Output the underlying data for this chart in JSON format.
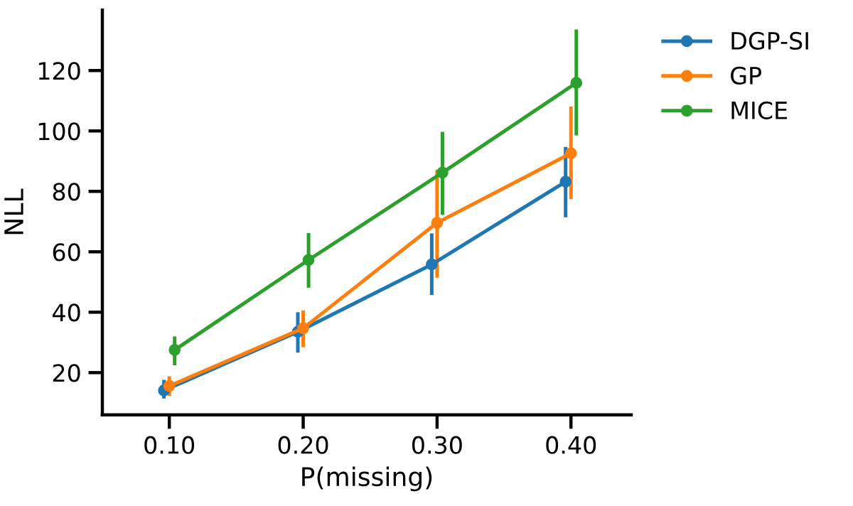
{
  "chart_data": {
    "type": "line",
    "xlabel": "P(missing)",
    "ylabel": "NLL",
    "xlim": [
      0.05,
      0.445
    ],
    "ylim": [
      6,
      140
    ],
    "xticks": [
      {
        "value": 0.1,
        "label": "0.10"
      },
      {
        "value": 0.2,
        "label": "0.20"
      },
      {
        "value": 0.3,
        "label": "0.30"
      },
      {
        "value": 0.4,
        "label": "0.40"
      }
    ],
    "yticks": [
      20,
      40,
      60,
      80,
      100,
      120
    ],
    "marker": "circle",
    "line_style": "solid",
    "grid": false,
    "legend": "top right",
    "series": [
      {
        "name": "DGP-SI",
        "color": "#1f77b4",
        "x": [
          0.096,
          0.196,
          0.296,
          0.396
        ],
        "values": [
          14.1,
          33.5,
          55.8,
          83.2
        ],
        "errors": [
          [
            12,
            17
          ],
          [
            27.2,
            39.4
          ],
          [
            46.3,
            65.5
          ],
          [
            72,
            94.1
          ]
        ]
      },
      {
        "name": "GP",
        "color": "#ff7f0e",
        "x": [
          0.1,
          0.2,
          0.3,
          0.4
        ],
        "values": [
          15.6,
          34.7,
          69.6,
          92.6
        ],
        "errors": [
          [
            12.9,
            18.2
          ],
          [
            29,
            40
          ],
          [
            52,
            86.6
          ],
          [
            78,
            107.5
          ]
        ]
      },
      {
        "name": "MICE",
        "color": "#2ca02c",
        "x": [
          0.104,
          0.204,
          0.304,
          0.404
        ],
        "values": [
          27.5,
          57.3,
          86.2,
          115.9
        ],
        "errors": [
          [
            23,
            31.4
          ],
          [
            48.7,
            65.6
          ],
          [
            72.8,
            99.1
          ],
          [
            99.1,
            133
          ]
        ]
      }
    ]
  }
}
